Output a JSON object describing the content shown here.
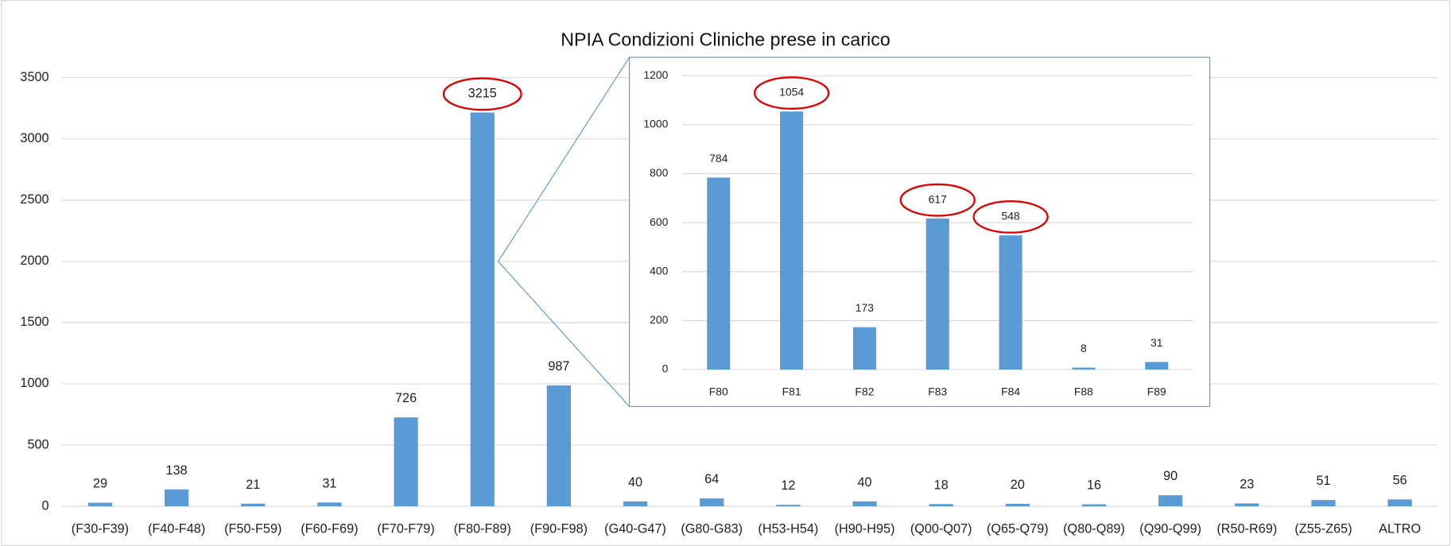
{
  "chart_data": [
    {
      "type": "bar",
      "title": "NPIA Condizioni Cliniche prese in carico",
      "categories": [
        "(F30-F39)",
        "(F40-F48)",
        "(F50-F59)",
        "(F60-F69)",
        "(F70-F79)",
        "(F80-F89)",
        "(F90-F98)",
        "(G40-G47)",
        "(G80-G83)",
        "(H53-H54)",
        "(H90-H95)",
        "(Q00-Q07)",
        "(Q65-Q79)",
        "(Q80-Q89)",
        "(Q90-Q99)",
        "(R50-R69)",
        "(Z55-Z65)",
        "ALTRO"
      ],
      "values": [
        29,
        138,
        21,
        31,
        726,
        3215,
        987,
        40,
        64,
        12,
        40,
        18,
        20,
        16,
        90,
        23,
        51,
        56
      ],
      "color": "#5b9bd5",
      "ylim": [
        0,
        3500
      ],
      "yticks": [
        0,
        500,
        1000,
        1500,
        2000,
        2500,
        3000,
        3500
      ],
      "grid": true,
      "highlighted": [
        5
      ]
    },
    {
      "type": "bar",
      "categories": [
        "F80",
        "F81",
        "F82",
        "F83",
        "F84",
        "F88",
        "F89"
      ],
      "values": [
        784,
        1054,
        173,
        617,
        548,
        8,
        31
      ],
      "color": "#5b9bd5",
      "ylim": [
        0,
        1200
      ],
      "yticks": [
        0,
        200,
        400,
        600,
        800,
        1000,
        1200
      ],
      "grid": true,
      "highlighted": [
        1,
        3,
        4
      ]
    }
  ]
}
